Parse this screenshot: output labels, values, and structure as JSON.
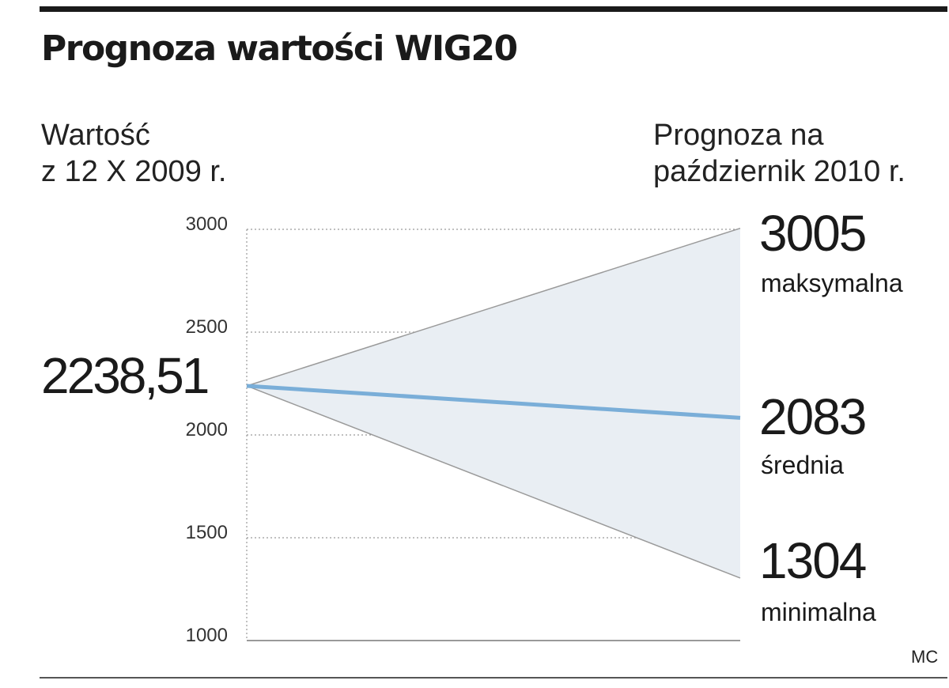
{
  "title": "Prognoza wartości WIG20",
  "subhead_left": [
    "Wartość",
    "z 12 X 2009 r."
  ],
  "subhead_right": [
    "Prognoza na",
    "październik 2010 r."
  ],
  "start_value_label": "2238,51",
  "source": "MC",
  "colors": {
    "fan_fill": "#e9eef3",
    "fan_edge": "#9a9a9a",
    "average_line": "#7aaed8",
    "grid": "#9a9a9a",
    "axis": "#9a9a9a"
  },
  "chart_data": {
    "type": "line",
    "x": [
      "12 X 2009",
      "październik 2010"
    ],
    "series": [
      {
        "name": "maksymalna",
        "values": [
          2238.51,
          3005
        ]
      },
      {
        "name": "średnia",
        "values": [
          2238.51,
          2083
        ]
      },
      {
        "name": "minimalna",
        "values": [
          2238.51,
          1304
        ]
      }
    ],
    "end_labels": [
      {
        "value": "3005",
        "label": "maksymalna"
      },
      {
        "value": "2083",
        "label": "średnia"
      },
      {
        "value": "1304",
        "label": "minimalna"
      }
    ],
    "yticks": [
      "3000",
      "2500",
      "2000",
      "1500",
      "1000"
    ],
    "ylim": [
      1000,
      3000
    ],
    "grid": true,
    "legend": "none"
  }
}
